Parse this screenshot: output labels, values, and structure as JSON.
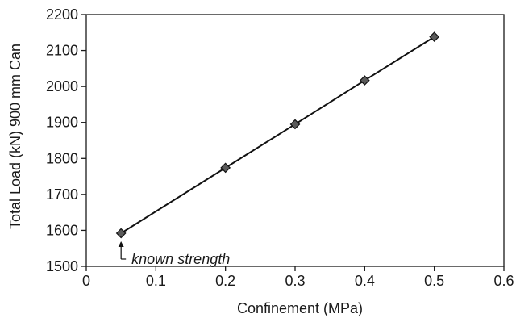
{
  "chart_data": {
    "type": "scatter",
    "title": "",
    "xlabel": "Confinement (MPa)",
    "ylabel": "Total Load (kN) 900 mm Can",
    "xlim": [
      0,
      0.6
    ],
    "ylim": [
      1500,
      2200
    ],
    "x_ticks": [
      "0",
      "0.1",
      "0.2",
      "0.3",
      "0.4",
      "0.5",
      "0.6"
    ],
    "y_ticks": [
      "1500",
      "1600",
      "1700",
      "1800",
      "1900",
      "2000",
      "2100",
      "2200"
    ],
    "grid": false,
    "legend": "none",
    "series": [
      {
        "marker": "diamond",
        "line": true,
        "color": "#5a5a5a",
        "x": [
          0.05,
          0.2,
          0.3,
          0.4,
          0.5
        ],
        "y": [
          1592,
          1774,
          1895,
          2017,
          2138
        ]
      }
    ],
    "annotations": [
      {
        "text": "known strength",
        "x": 0.05,
        "y": 1592,
        "arrow": true
      }
    ]
  }
}
